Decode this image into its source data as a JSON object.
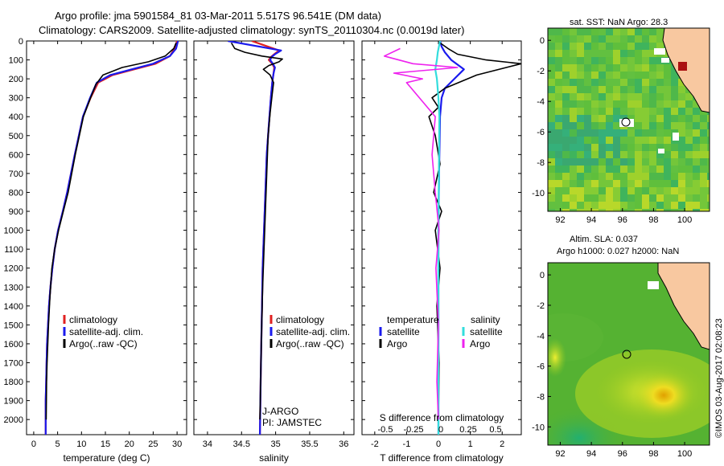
{
  "header": {
    "line1": "Argo profile: jma 5901584_81 03-Mar-2011 5.517S 96.541E (DM data)",
    "line2": "Climatology: CARS2009. Satellite-adjusted climatology: synTS_20110304.nc (0.0019d later)"
  },
  "colors": {
    "clim": "#e02020",
    "sat": "#1a1aee",
    "argo": "#000000",
    "sal_sat": "#33dddd",
    "sal_argo": "#ee22ee"
  },
  "depth_axis": {
    "ticks": [
      0,
      100,
      200,
      300,
      400,
      500,
      600,
      700,
      800,
      900,
      1000,
      1100,
      1200,
      1300,
      1400,
      1500,
      1600,
      1700,
      1800,
      1900,
      2000
    ],
    "range": [
      0,
      2080
    ]
  },
  "chart_data": [
    {
      "id": "temperature",
      "type": "line",
      "xlabel": "temperature (deg C)",
      "xlim": [
        -1.5,
        32
      ],
      "xticks": [
        0,
        5,
        10,
        15,
        20,
        25,
        30
      ],
      "legend": [
        "climatology",
        "satellite-adj. clim.",
        "Argo(..raw -QC)"
      ],
      "series": [
        {
          "name": "climatology",
          "x": [
            2.5,
            2.5,
            2.6,
            2.7,
            2.8,
            3.0,
            3.2,
            3.5,
            3.9,
            4.4,
            5.1,
            6.1,
            7.0,
            8.6,
            10.3,
            11.9,
            13.5,
            16.5,
            21.0,
            25.5,
            28.5,
            29.5,
            30.0
          ],
          "depth": [
            2080,
            1900,
            1800,
            1700,
            1600,
            1500,
            1400,
            1300,
            1200,
            1100,
            1000,
            900,
            800,
            600,
            400,
            300,
            220,
            180,
            150,
            120,
            80,
            40,
            0
          ]
        },
        {
          "name": "satellite-adj. clim.",
          "x": [
            2.5,
            2.5,
            2.6,
            2.7,
            2.8,
            3.0,
            3.2,
            3.5,
            3.9,
            4.4,
            5.1,
            6.1,
            7.0,
            8.6,
            10.3,
            11.8,
            13.2,
            16.0,
            20.5,
            25.0,
            28.5,
            29.8,
            30.2
          ],
          "depth": [
            2080,
            1900,
            1800,
            1700,
            1600,
            1500,
            1400,
            1300,
            1200,
            1100,
            1000,
            900,
            800,
            600,
            400,
            300,
            220,
            180,
            150,
            120,
            80,
            40,
            0
          ]
        },
        {
          "name": "Argo(..raw -QC)",
          "x": [
            2.6,
            2.7,
            2.8,
            3.1,
            3.4,
            3.8,
            4.4,
            5.2,
            6.2,
            7.2,
            8.7,
            10.4,
            11.9,
            13.0,
            14.5,
            18.5,
            24.0,
            27.5,
            29.3,
            29.8
          ],
          "depth": [
            2000,
            1800,
            1700,
            1500,
            1350,
            1200,
            1100,
            1000,
            900,
            800,
            600,
            400,
            300,
            230,
            180,
            140,
            110,
            80,
            40,
            10
          ]
        }
      ]
    },
    {
      "id": "salinity",
      "type": "line",
      "xlabel": "salinity",
      "xlim": [
        33.8,
        36.15
      ],
      "xticks": [
        34,
        34.5,
        35,
        35.5,
        36
      ],
      "legend": [
        "climatology",
        "satellite-adj. clim.",
        "Argo(..raw -QC)"
      ],
      "annotations": [
        "J-ARGO",
        "PI: JAMSTEC"
      ],
      "series": [
        {
          "name": "climatology",
          "x": [
            34.77,
            34.78,
            34.79,
            34.8,
            34.81,
            34.83,
            34.85,
            34.87,
            34.9,
            34.93,
            34.95,
            34.97,
            34.98,
            34.95,
            34.9,
            34.93,
            34.98,
            35.05,
            34.65
          ],
          "depth": [
            2080,
            1800,
            1600,
            1400,
            1200,
            1000,
            800,
            600,
            450,
            300,
            220,
            170,
            140,
            120,
            100,
            85,
            70,
            50,
            0
          ]
        },
        {
          "name": "satellite-adj. clim.",
          "x": [
            34.77,
            34.78,
            34.79,
            34.8,
            34.81,
            34.83,
            34.85,
            34.87,
            34.9,
            34.93,
            34.95,
            34.97,
            34.99,
            34.96,
            34.92,
            34.94,
            34.99,
            35.08,
            34.3
          ],
          "depth": [
            2080,
            1800,
            1600,
            1400,
            1200,
            1000,
            800,
            600,
            450,
            300,
            220,
            170,
            140,
            120,
            100,
            85,
            70,
            50,
            0
          ]
        },
        {
          "name": "Argo(..raw -QC)",
          "x": [
            34.77,
            34.78,
            34.79,
            34.81,
            34.83,
            34.85,
            34.87,
            34.89,
            34.92,
            34.95,
            34.97,
            34.92,
            34.82,
            34.9,
            35.05,
            35.1,
            34.8,
            34.55,
            34.4,
            34.35
          ],
          "depth": [
            2000,
            1800,
            1600,
            1300,
            1100,
            900,
            700,
            500,
            380,
            280,
            220,
            180,
            150,
            130,
            110,
            95,
            80,
            60,
            40,
            10
          ]
        }
      ]
    },
    {
      "id": "difference",
      "type": "line",
      "xlabel": "T difference from climatology",
      "xlabel_top": "S difference from climatology",
      "xlim": [
        -2.4,
        2.6
      ],
      "xticks": [
        -2,
        -1,
        0,
        1,
        2
      ],
      "xticks_top": [
        "-0.5",
        "-0.25",
        "0",
        "0.25",
        "0.5"
      ],
      "legend_headers": [
        "temperature",
        "salinity"
      ],
      "legend": [
        "satellite",
        "Argo",
        "satellite",
        "Argo"
      ],
      "series": [
        {
          "name": "temperature satellite",
          "x": [
            0,
            0,
            0,
            0.02,
            0.05,
            0.1,
            0.2,
            0.5,
            0.8,
            0.4,
            0.2,
            0.1,
            0.05
          ],
          "depth": [
            2080,
            1500,
            1000,
            700,
            400,
            300,
            250,
            200,
            150,
            100,
            60,
            30,
            0
          ]
        },
        {
          "name": "temperature Argo",
          "x": [
            0,
            0.02,
            -0.05,
            0.05,
            -0.1,
            0.1,
            -0.15,
            0.05,
            -0.1,
            -0.3,
            0,
            -0.2,
            0.2,
            1.2,
            2.6,
            1.5,
            0.6,
            0.3,
            0.05
          ],
          "depth": [
            2000,
            1700,
            1400,
            1200,
            1000,
            900,
            800,
            650,
            500,
            400,
            350,
            300,
            250,
            180,
            120,
            100,
            70,
            40,
            10
          ]
        },
        {
          "name": "salinity satellite",
          "x": [
            0,
            0,
            0,
            0.01,
            0.02,
            0.03,
            0,
            -0.05,
            -0.1,
            -0.05,
            -0.02,
            0.05
          ],
          "depth": [
            2080,
            1500,
            1000,
            800,
            600,
            400,
            300,
            200,
            150,
            100,
            60,
            0
          ]
        },
        {
          "name": "salinity Argo",
          "x": [
            0,
            -0.05,
            0,
            -0.08,
            0.02,
            -0.1,
            -0.2,
            -0.1,
            -1.0,
            -0.5,
            -1.4,
            0.6,
            -0.8,
            -1.7,
            -1.2
          ],
          "depth": [
            2000,
            1800,
            1500,
            1200,
            1000,
            800,
            600,
            400,
            220,
            200,
            170,
            140,
            120,
            80,
            40
          ]
        }
      ]
    }
  ],
  "maps": {
    "sst": {
      "title": "sat. SST: NaN Argo: 28.3",
      "xticks": [
        "92",
        "94",
        "96",
        "98",
        "100"
      ],
      "yticks": [
        "0",
        "-2",
        "-4",
        "-6",
        "-8",
        "-10"
      ]
    },
    "sla": {
      "title_line1": "Altim. SLA: 0.037",
      "title_line2": "Argo h1000: 0.027 h2000: NaN",
      "xticks": [
        "92",
        "94",
        "96",
        "98",
        "100"
      ],
      "yticks": [
        "0",
        "-2",
        "-4",
        "-6",
        "-8",
        "-10"
      ]
    }
  },
  "stamp": "©IMOS 03-Aug-2017 02:08:23"
}
